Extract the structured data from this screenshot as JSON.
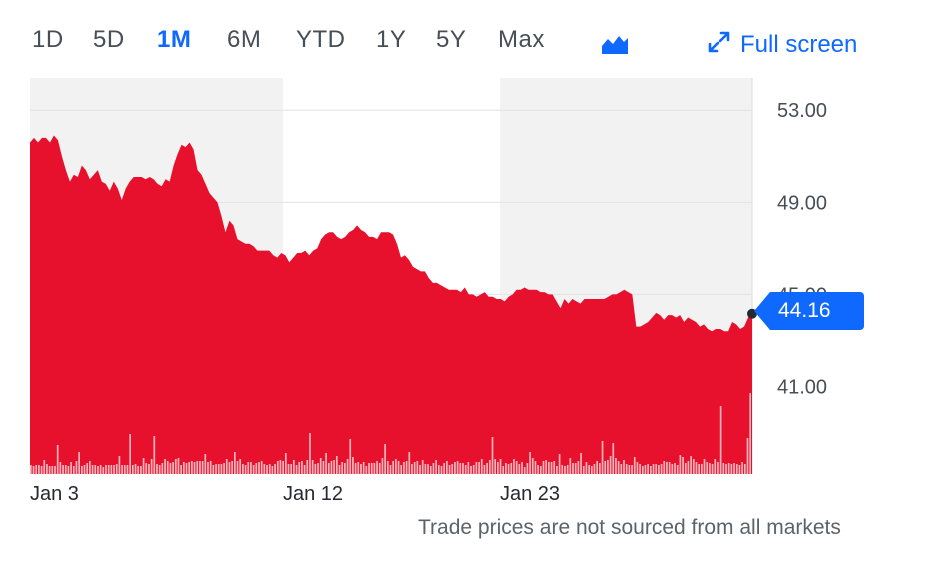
{
  "toolbar": {
    "ranges": [
      "1D",
      "5D",
      "1M",
      "6M",
      "YTD",
      "1Y",
      "5Y",
      "Max"
    ],
    "active_range": "1M",
    "chart_type_icon": "mountain-chart-icon",
    "fullscreen_icon": "expand-arrows-icon",
    "fullscreen_label": "Full screen"
  },
  "current_price": "44.16",
  "footer_note": "Trade prices are not sourced from all markets",
  "colors": {
    "area_fill": "#e8112d",
    "volume_bar": "#f7b5bd",
    "accent": "#0f69ff",
    "shaded_band": "#f2f2f2"
  },
  "chart_data": {
    "type": "area",
    "xlabel": "",
    "ylabel": "",
    "ylim": [
      37.2,
      54.4
    ],
    "yticks": [
      "53.00",
      "49.00",
      "45.00",
      "41.00"
    ],
    "xticks": [
      "Jan 3",
      "Jan 12",
      "Jan 23"
    ],
    "grid": true,
    "series": [
      {
        "values": [
          51.6,
          51.8,
          51.6,
          51.8,
          51.8,
          51.6,
          51.9,
          51.7,
          51.0,
          50.4,
          49.9,
          50.2,
          50.1,
          50.6,
          50.4,
          50.0,
          50.2,
          50.4,
          49.9,
          49.8,
          49.5,
          49.9,
          49.6,
          49.1,
          49.6,
          49.9,
          50.1,
          50.1,
          50.1,
          50.0,
          50.1,
          50.0,
          49.8,
          49.7,
          50.0,
          49.9,
          50.6,
          51.1,
          51.5,
          51.4,
          51.6,
          51.3,
          50.4,
          50.2,
          49.8,
          49.4,
          49.2,
          49.0,
          48.4,
          47.7,
          48.2,
          48.0,
          47.4,
          47.3,
          47.2,
          47.2,
          47.1,
          46.9,
          46.9,
          46.9,
          46.9,
          46.7,
          46.6,
          46.8,
          46.7,
          46.4,
          46.6,
          46.8,
          46.8,
          46.9,
          46.7,
          46.9,
          47.0,
          47.4,
          47.6,
          47.7,
          47.7,
          47.5,
          47.4,
          47.5,
          47.7,
          47.8,
          48.0,
          47.8,
          47.7,
          47.5,
          47.5,
          47.4,
          47.7,
          47.7,
          47.7,
          47.6,
          47.2,
          46.6,
          46.7,
          46.5,
          46.2,
          46.1,
          46.0,
          46.0,
          45.7,
          45.5,
          45.5,
          45.4,
          45.3,
          45.2,
          45.2,
          45.2,
          45.1,
          45.3,
          45.0,
          45.0,
          44.9,
          45.0,
          45.1,
          44.9,
          44.9,
          44.8,
          44.8,
          44.7,
          44.9,
          45.0,
          45.2,
          45.2,
          45.3,
          45.2,
          45.2,
          45.2,
          45.1,
          45.1,
          45.0,
          45.0,
          44.7,
          44.4,
          44.8,
          44.6,
          44.8,
          44.7,
          44.6,
          44.8,
          44.8,
          44.8,
          44.8,
          44.8,
          44.8,
          44.9,
          45.0,
          45.0,
          45.1,
          45.2,
          45.1,
          45.0,
          43.6,
          43.6,
          43.7,
          43.8,
          44.0,
          44.2,
          44.1,
          43.9,
          44.1,
          44.1,
          44.0,
          44.1,
          43.8,
          44.0,
          43.9,
          43.8,
          43.6,
          43.7,
          43.5,
          43.4,
          43.5,
          43.5,
          43.4,
          43.4,
          43.8,
          43.7,
          43.5,
          43.6,
          44.0,
          44.16
        ]
      }
    ],
    "volume": [
      {
        "name": "volume",
        "values": [
          0.09,
          0.08,
          0.09,
          0.09,
          0.08,
          0.14,
          0.1,
          0.08,
          0.08,
          0.08,
          0.29,
          0.12,
          0.09,
          0.09,
          0.08,
          0.12,
          0.08,
          0.13,
          0.22,
          0.08,
          0.09,
          0.11,
          0.13,
          0.09,
          0.09,
          0.08,
          0.09,
          0.07,
          0.09,
          0.09,
          0.09,
          0.09,
          0.1,
          0.18,
          0.09,
          0.09,
          0.09,
          0.4,
          0.09,
          0.1,
          0.08,
          0.08,
          0.16,
          0.11,
          0.1,
          0.15,
          0.38,
          0.1,
          0.09,
          0.11,
          0.15,
          0.13,
          0.11,
          0.12,
          0.15,
          0.16,
          0.09,
          0.12,
          0.11,
          0.12,
          0.13,
          0.12,
          0.13,
          0.13,
          0.13,
          0.2,
          0.12,
          0.13,
          0.09,
          0.1,
          0.1,
          0.1,
          0.11,
          0.15,
          0.12,
          0.13,
          0.22,
          0.13,
          0.15,
          0.1,
          0.09,
          0.12,
          0.12,
          0.09,
          0.11,
          0.12,
          0.13,
          0.1,
          0.09,
          0.1,
          0.08,
          0.1,
          0.13,
          0.14,
          0.13,
          0.21,
          0.1,
          0.1,
          0.14,
          0.09,
          0.12,
          0.13,
          0.09,
          0.14,
          0.41,
          0.14,
          0.1,
          0.11,
          0.16,
          0.13,
          0.21,
          0.11,
          0.13,
          0.14,
          0.18,
          0.09,
          0.12,
          0.11,
          0.15,
          0.35,
          0.17,
          0.11,
          0.12,
          0.1,
          0.12,
          0.08,
          0.11,
          0.11,
          0.11,
          0.13,
          0.11,
          0.16,
          0.3,
          0.13,
          0.09,
          0.13,
          0.15,
          0.13,
          0.09,
          0.12,
          0.13,
          0.22,
          0.1,
          0.12,
          0.13,
          0.09,
          0.14,
          0.1,
          0.1,
          0.08,
          0.11,
          0.14,
          0.09,
          0.08,
          0.11,
          0.13,
          0.09,
          0.1,
          0.12,
          0.13,
          0.11,
          0.11,
          0.09,
          0.12,
          0.08,
          0.09,
          0.12,
          0.12,
          0.15,
          0.09,
          0.11,
          0.14,
          0.37,
          0.15,
          0.12,
          0.15,
          0.08,
          0.11,
          0.1,
          0.11,
          0.15,
          0.13,
          0.1,
          0.12,
          0.07,
          0.11,
          0.22,
          0.16,
          0.13,
          0.09,
          0.08,
          0.13,
          0.14,
          0.12,
          0.12,
          0.13,
          0.08,
          0.2,
          0.09,
          0.08,
          0.09,
          0.16,
          0.11,
          0.11,
          0.13,
          0.21,
          0.08,
          0.12,
          0.09,
          0.08,
          0.1,
          0.13,
          0.11,
          0.33,
          0.13,
          0.14,
          0.18,
          0.31,
          0.16,
          0.13,
          0.1,
          0.14,
          0.1,
          0.09,
          0.09,
          0.17,
          0.12,
          0.1,
          0.08,
          0.09,
          0.1,
          0.08,
          0.1,
          0.1,
          0.09,
          0.1,
          0.13,
          0.12,
          0.12,
          0.1,
          0.11,
          0.09,
          0.19,
          0.17,
          0.11,
          0.13,
          0.18,
          0.15,
          0.12,
          0.1,
          0.1,
          0.15,
          0.12,
          0.11,
          0.1,
          0.15,
          0.12,
          0.68,
          0.11,
          0.1,
          0.11,
          0.1,
          0.11,
          0.1,
          0.09,
          0.12,
          0.1,
          0.36,
          0.81
        ]
      }
    ]
  }
}
